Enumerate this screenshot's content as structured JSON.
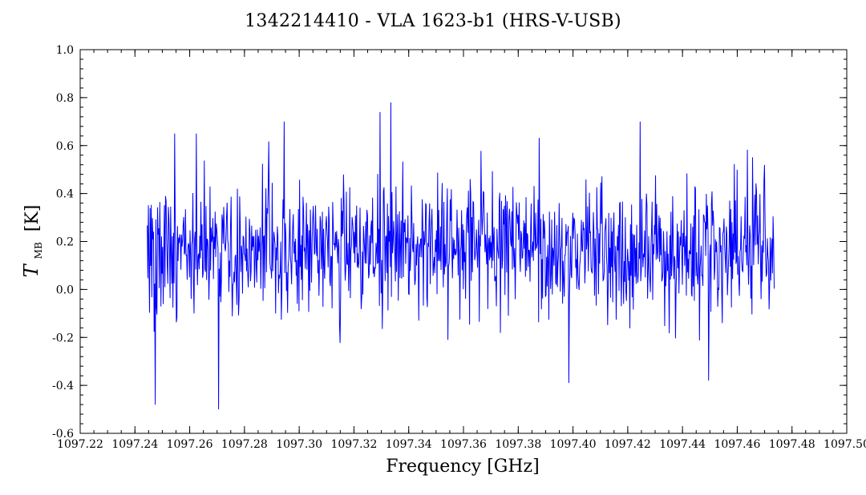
{
  "chart_data": {
    "type": "line",
    "title": "1342214410 - VLA 1623-b1 (HRS-V-USB)",
    "xlabel": "Frequency [GHz]",
    "ylabel_main": "T",
    "ylabel_sub": "MB",
    "ylabel_unit": "[K]",
    "xlim": [
      1097.22,
      1097.5
    ],
    "ylim": [
      -0.6,
      1.0
    ],
    "xticks": [
      "1097.22",
      "1097.24",
      "1097.26",
      "1097.28",
      "1097.30",
      "1097.32",
      "1097.34",
      "1097.36",
      "1097.38",
      "1097.40",
      "1097.42",
      "1097.44",
      "1097.46",
      "1097.48",
      "1097.50"
    ],
    "yticks": [
      "-0.6",
      "-0.4",
      "-0.2",
      "0.0",
      "0.2",
      "0.4",
      "0.6",
      "0.8",
      "1.0"
    ],
    "grid": false,
    "series": [
      {
        "color": "#0000ff",
        "x_start": 1097.2445,
        "x_end": 1097.4735,
        "points": 1100,
        "mean": 0.16,
        "rms": 0.14,
        "seed": 1342214410,
        "notable_points": [
          {
            "x": 1097.2475,
            "y": -0.48
          },
          {
            "x": 1097.2705,
            "y": -0.5
          },
          {
            "x": 1097.3335,
            "y": 0.78
          },
          {
            "x": 1097.4245,
            "y": 0.7
          },
          {
            "x": 1097.2945,
            "y": 0.7
          },
          {
            "x": 1097.3295,
            "y": 0.74
          },
          {
            "x": 1097.3985,
            "y": -0.39
          },
          {
            "x": 1097.4495,
            "y": -0.38
          },
          {
            "x": 1097.2625,
            "y": 0.65
          },
          {
            "x": 1097.2545,
            "y": 0.65
          }
        ]
      }
    ]
  }
}
